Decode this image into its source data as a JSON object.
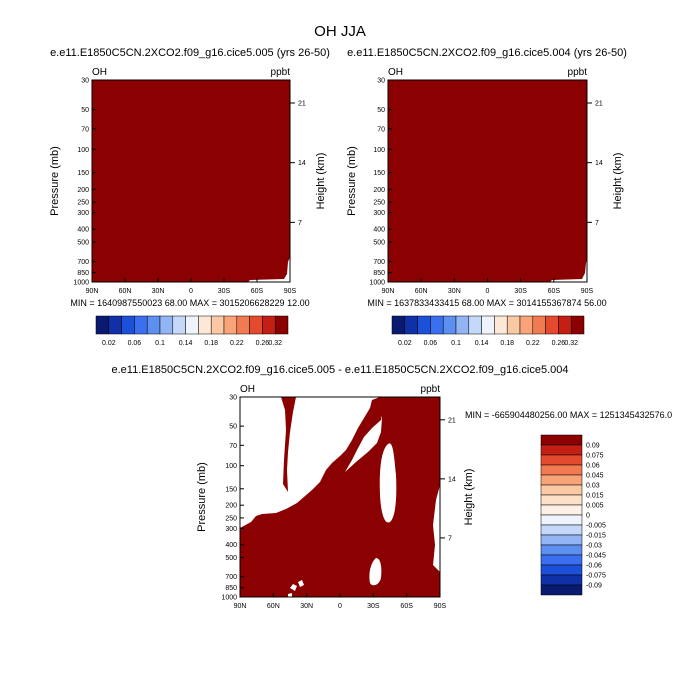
{
  "figure_title": "OH JJA",
  "colors": {
    "fill": "#8b0000",
    "white": "#ffffff"
  },
  "chart_data": [
    {
      "type": "heatmap",
      "title": "e.e11.E1850C5CN.2XCO2.f09_g16.cice5.005 (yrs 26-50)",
      "left_label": "OH",
      "right_label": "ppbt",
      "xlabel": "",
      "ylabel": "Pressure (mb)",
      "y2label": "Height (km)",
      "x_ticks": [
        "90N",
        "60N",
        "30N",
        "0",
        "30S",
        "60S",
        "90S"
      ],
      "y_ticks": [
        "30",
        "50",
        "70",
        "100",
        "150",
        "200",
        "250",
        "300",
        "400",
        "500",
        "700",
        "850",
        "1000"
      ],
      "y2_ticks": [
        "21",
        "14",
        "7"
      ],
      "stats": "MIN = 1640987550023 68.00   MAX = 3015206628229 12.00",
      "colorbar": {
        "labels": [
          "0.02",
          "0.06",
          "0.1",
          "0.14",
          "0.18",
          "0.22",
          "0.26",
          "0.32"
        ],
        "colors": [
          "#0a1a70",
          "#1030a8",
          "#1d50d8",
          "#3a70f0",
          "#5d8ff0",
          "#90b4f4",
          "#c4d8fa",
          "#eef3fd",
          "#fde8d8",
          "#fbc8a4",
          "#f8a478",
          "#f27a50",
          "#e34a2e",
          "#c41f14",
          "#8b0000"
        ]
      }
    },
    {
      "type": "heatmap",
      "title": "e.e11.E1850C5CN.2XCO2.f09_g16.cice5.004 (yrs 26-50)",
      "left_label": "OH",
      "right_label": "ppbt",
      "xlabel": "",
      "ylabel": "Pressure (mb)",
      "y2label": "Height (km)",
      "x_ticks": [
        "90N",
        "60N",
        "30N",
        "0",
        "30S",
        "60S",
        "90S"
      ],
      "y_ticks": [
        "30",
        "50",
        "70",
        "100",
        "150",
        "200",
        "250",
        "300",
        "400",
        "500",
        "700",
        "850",
        "1000"
      ],
      "y2_ticks": [
        "21",
        "14",
        "7"
      ],
      "stats": "MIN = 1637833433415 68.00   MAX = 3014155367874 56.00",
      "colorbar": {
        "labels": [
          "0.02",
          "0.06",
          "0.1",
          "0.14",
          "0.18",
          "0.22",
          "0.26",
          "0.32"
        ],
        "colors": [
          "#0a1a70",
          "#1030a8",
          "#1d50d8",
          "#3a70f0",
          "#5d8ff0",
          "#90b4f4",
          "#c4d8fa",
          "#eef3fd",
          "#fde8d8",
          "#fbc8a4",
          "#f8a478",
          "#f27a50",
          "#e34a2e",
          "#c41f14",
          "#8b0000"
        ]
      }
    },
    {
      "type": "heatmap",
      "title": "e.e11.E1850C5CN.2XCO2.f09_g16.cice5.005 - e.e11.E1850C5CN.2XCO2.f09_g16.cice5.004",
      "left_label": "OH",
      "right_label": "ppbt",
      "xlabel": "",
      "ylabel": "Pressure (mb)",
      "y2label": "Height (km)",
      "x_ticks": [
        "90N",
        "60N",
        "30N",
        "0",
        "30S",
        "60S",
        "90S"
      ],
      "y_ticks": [
        "30",
        "50",
        "70",
        "100",
        "150",
        "200",
        "250",
        "300",
        "400",
        "500",
        "700",
        "850",
        "1000"
      ],
      "y2_ticks": [
        "21",
        "14",
        "7"
      ],
      "stats": "MIN = -665904480256.00   MAX = 1251345432576.0",
      "colorbar": {
        "labels": [
          "0.09",
          "0.075",
          "0.06",
          "0.045",
          "0.03",
          "0.015",
          "0.005",
          "0",
          "-0.005",
          "-0.015",
          "-0.03",
          "-0.045",
          "-0.06",
          "-0.075",
          "-0.09"
        ],
        "colors": [
          "#8b0000",
          "#c41f14",
          "#e34a2e",
          "#f27a50",
          "#f8a478",
          "#fbc8a4",
          "#fde0c8",
          "#fdf0e6",
          "#eef3fd",
          "#c4d8fa",
          "#90b4f4",
          "#5d8ff0",
          "#3a70f0",
          "#1d50d8",
          "#1030a8",
          "#0a1a70"
        ]
      }
    }
  ]
}
